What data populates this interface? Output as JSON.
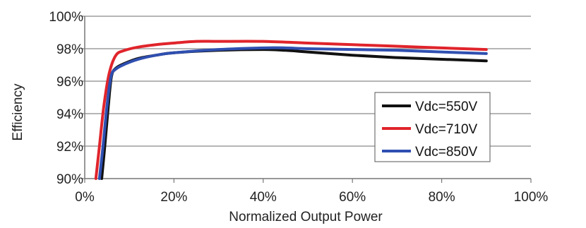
{
  "chart_data": {
    "type": "line",
    "title": "",
    "xlabel": "Normalized Output Power",
    "ylabel": "Efficiency",
    "xlim": [
      0,
      100
    ],
    "ylim": [
      90,
      100
    ],
    "x_ticks": [
      0,
      20,
      40,
      60,
      80,
      100
    ],
    "x_tick_labels": [
      "0%",
      "20%",
      "40%",
      "60%",
      "80%",
      "100%"
    ],
    "y_ticks": [
      90,
      92,
      94,
      96,
      98,
      100
    ],
    "y_tick_labels": [
      "90%",
      "92%",
      "94%",
      "96%",
      "98%",
      "100%"
    ],
    "grid": "horizontal",
    "legend_position": "lower-right",
    "series": [
      {
        "name": "Vdc=550V",
        "color": "#111111",
        "points": [
          [
            3.8,
            90.0
          ],
          [
            4.5,
            92.0
          ],
          [
            5.3,
            94.5
          ],
          [
            6.0,
            96.3
          ],
          [
            7.0,
            96.8
          ],
          [
            9.0,
            97.1
          ],
          [
            12.0,
            97.4
          ],
          [
            16.0,
            97.6
          ],
          [
            20.0,
            97.75
          ],
          [
            30.0,
            97.9
          ],
          [
            40.0,
            97.95
          ],
          [
            45.0,
            97.9
          ],
          [
            50.0,
            97.8
          ],
          [
            60.0,
            97.6
          ],
          [
            70.0,
            97.45
          ],
          [
            80.0,
            97.35
          ],
          [
            90.0,
            97.25
          ]
        ]
      },
      {
        "name": "Vdc=710V",
        "color": "#e0242b",
        "points": [
          [
            2.5,
            90.0
          ],
          [
            3.3,
            92.0
          ],
          [
            4.3,
            94.5
          ],
          [
            5.5,
            96.5
          ],
          [
            7.0,
            97.6
          ],
          [
            9.0,
            97.9
          ],
          [
            12.0,
            98.1
          ],
          [
            16.0,
            98.25
          ],
          [
            20.0,
            98.35
          ],
          [
            25.0,
            98.45
          ],
          [
            30.0,
            98.45
          ],
          [
            40.0,
            98.45
          ],
          [
            50.0,
            98.35
          ],
          [
            60.0,
            98.25
          ],
          [
            70.0,
            98.15
          ],
          [
            80.0,
            98.05
          ],
          [
            90.0,
            97.95
          ]
        ]
      },
      {
        "name": "Vdc=850V",
        "color": "#2f4fb0",
        "points": [
          [
            3.3,
            90.0
          ],
          [
            4.1,
            92.0
          ],
          [
            5.0,
            94.5
          ],
          [
            5.9,
            96.3
          ],
          [
            7.0,
            96.75
          ],
          [
            9.0,
            97.05
          ],
          [
            12.0,
            97.35
          ],
          [
            16.0,
            97.6
          ],
          [
            20.0,
            97.75
          ],
          [
            30.0,
            97.95
          ],
          [
            40.0,
            98.05
          ],
          [
            45.0,
            98.05
          ],
          [
            50.0,
            98.0
          ],
          [
            60.0,
            97.95
          ],
          [
            70.0,
            97.9
          ],
          [
            80.0,
            97.8
          ],
          [
            90.0,
            97.7
          ]
        ]
      }
    ]
  }
}
